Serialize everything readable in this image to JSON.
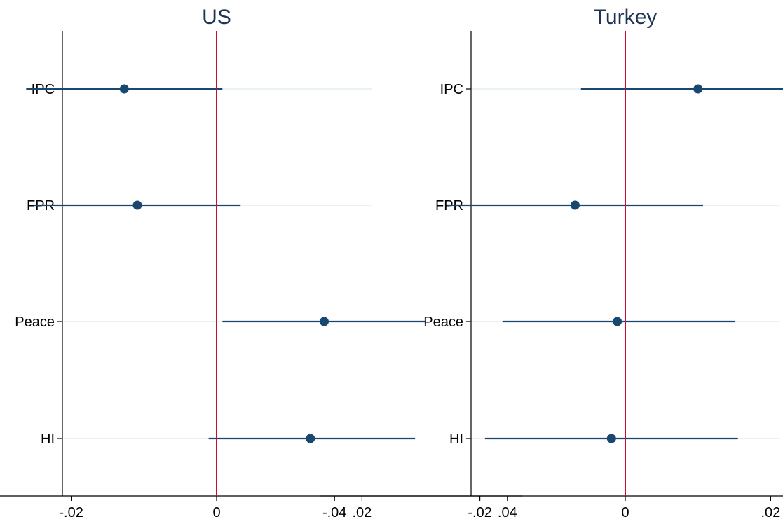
{
  "chart_data": [
    {
      "type": "scatter",
      "title": "US",
      "xlim": [
        -0.042,
        0.042
      ],
      "xticks": [
        -0.04,
        -0.02,
        0,
        0.02,
        0.04
      ],
      "xtick_labels": [
        "-.04",
        "-.02",
        "0",
        ".02",
        ".04"
      ],
      "categories": [
        "IPC",
        "FPR",
        "Peace",
        "HI"
      ],
      "points": [
        {
          "label": "IPC",
          "estimate": -0.0127,
          "ci_low": -0.0262,
          "ci_high": 0.0008
        },
        {
          "label": "FPR",
          "estimate": -0.0109,
          "ci_low": -0.0251,
          "ci_high": 0.0033
        },
        {
          "label": "Peace",
          "estimate": 0.0148,
          "ci_low": 0.0008,
          "ci_high": 0.0288
        },
        {
          "label": "HI",
          "estimate": 0.0129,
          "ci_low": -0.0011,
          "ci_high": 0.0273
        }
      ],
      "reference_line": 0,
      "grid": true
    },
    {
      "type": "scatter",
      "title": "Turkey",
      "xlim": [
        -0.042,
        0.042
      ],
      "xticks": [
        -0.04,
        -0.02,
        0,
        0.02,
        0.04
      ],
      "xtick_labels": [
        "-.04",
        "-.02",
        "0",
        ".02",
        ".04"
      ],
      "categories": [
        "IPC",
        "FPR",
        "Peace",
        "HI"
      ],
      "points": [
        {
          "label": "IPC",
          "estimate": 0.01,
          "ci_low": -0.0061,
          "ci_high": 0.0261
        },
        {
          "label": "FPR",
          "estimate": -0.0069,
          "ci_low": -0.0245,
          "ci_high": 0.0107
        },
        {
          "label": "Peace",
          "estimate": -0.0011,
          "ci_low": -0.0169,
          "ci_high": 0.0151
        },
        {
          "label": "HI",
          "estimate": -0.0019,
          "ci_low": -0.0193,
          "ci_high": 0.0155
        }
      ],
      "reference_line": 0,
      "grid": true
    }
  ],
  "colors": {
    "marker": "#1a476f",
    "ci_line": "#1a476f",
    "reference_line": "#c8102e",
    "grid": "#eaf2f3",
    "title": "#1f3354"
  }
}
